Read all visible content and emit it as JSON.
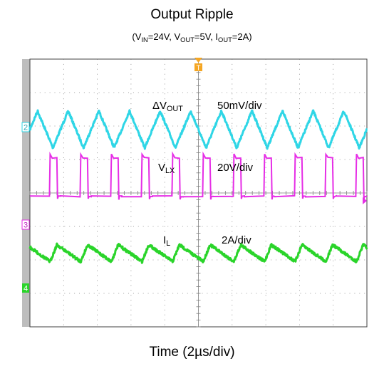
{
  "title": "Output Ripple",
  "subtitle": {
    "p1": "(V",
    "s1": "IN",
    "p2": "=24V, V",
    "s2": "OUT",
    "p3": "=5V, I",
    "s3": "OUT",
    "p4": "=2A)"
  },
  "xlabel": "Time (2µs/div)",
  "markers": {
    "trigger": "T",
    "ch2": "2",
    "ch3": "3",
    "ch4": "4"
  },
  "colors": {
    "ch2": "#2fd6e6",
    "ch3": "#e62ee6",
    "ch4": "#2ad42a",
    "trigger": "#f5a623",
    "grid": "#808080",
    "frame": "#404040"
  },
  "chart_data": {
    "type": "line",
    "grid": true,
    "x_divisions": 10,
    "y_divisions": 8,
    "time_per_div": "2µs",
    "switching_cycles": 11,
    "series": [
      {
        "name": "ΔV",
        "name_sub": "OUT",
        "scale": "50mV/div",
        "shape": "triangle",
        "cycles": 11,
        "amplitude_div": 0.55,
        "center_div": -1.9
      },
      {
        "name": "V",
        "name_sub": "LX",
        "scale": "20V/div",
        "shape": "pulse",
        "cycles": 11,
        "duty": 0.22,
        "low_div": 0.1,
        "high_div": 1.05
      },
      {
        "name": "I",
        "name_sub": "L",
        "scale": "2A/div",
        "shape": "sawtooth",
        "cycles": 11,
        "duty": 0.22,
        "amplitude_div": 0.25,
        "center_div": 1.8
      }
    ]
  }
}
